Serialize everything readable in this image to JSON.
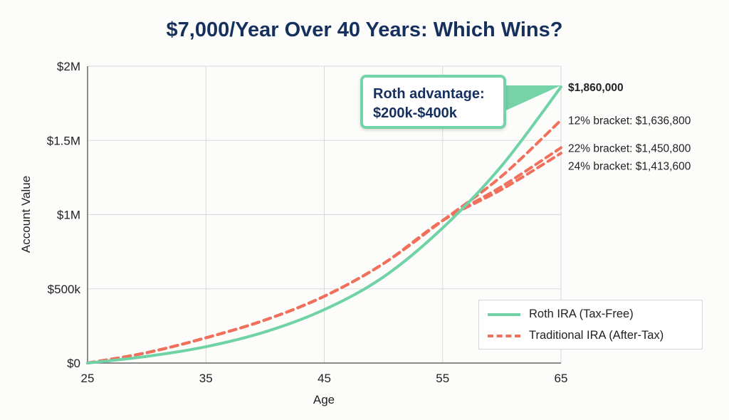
{
  "chart_data": {
    "type": "line",
    "title": "$7,000/Year Over 40 Years: Which Wins?",
    "xlabel": "Age",
    "ylabel": "Account Value",
    "x": [
      25,
      30,
      35,
      40,
      45,
      50,
      55,
      60,
      65
    ],
    "xlim": [
      25,
      65
    ],
    "ylim": [
      0,
      2000000
    ],
    "xticks": [
      "25",
      "35",
      "45",
      "55",
      "65"
    ],
    "xtick_values": [
      25,
      35,
      45,
      55,
      65
    ],
    "yticks": [
      "$0",
      "$500k",
      "$1M",
      "$1.5M",
      "$2M"
    ],
    "ytick_values": [
      0,
      500000,
      1000000,
      1500000,
      2000000
    ],
    "grid": true,
    "legend_position": "bottom-right",
    "series": [
      {
        "name": "Roth IRA (Tax-Free)",
        "style": "solid",
        "color": "#6fd3a5",
        "values": [
          0,
          45000,
          110000,
          210000,
          360000,
          580000,
          910000,
          1330000,
          1860000
        ],
        "end_label": "$1,860,000"
      },
      {
        "style": "dashed",
        "color": "#f0705c",
        "values": [
          0,
          70000,
          170000,
          290000,
          450000,
          670000,
          960000,
          1260000,
          1636800
        ],
        "end_label": "12% bracket: $1,636,800"
      },
      {
        "style": "dashed",
        "color": "#f0705c",
        "values": [
          0,
          70000,
          170000,
          290000,
          450000,
          670000,
          960000,
          1190000,
          1450800
        ],
        "end_label": "22% bracket: $1,450,800"
      },
      {
        "style": "dashed",
        "color": "#f0705c",
        "values": [
          0,
          70000,
          170000,
          290000,
          450000,
          670000,
          960000,
          1170000,
          1413600
        ],
        "end_label": "24% bracket: $1,413,600"
      }
    ],
    "legend": [
      {
        "label": "Roth IRA (Tax-Free)",
        "style": "solid",
        "color": "#6fd3a5"
      },
      {
        "label": "Traditional IRA (After-Tax)",
        "style": "dashed",
        "color": "#f0705c"
      }
    ],
    "annotation": {
      "line1": "Roth advantage:",
      "line2": "$200k-$400k",
      "border_color": "#74d3a8"
    }
  }
}
